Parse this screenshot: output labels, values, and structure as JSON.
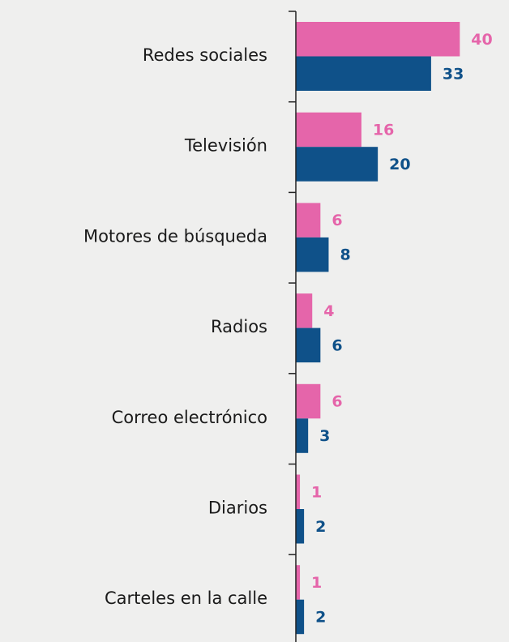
{
  "chart_data": {
    "type": "hbar",
    "categories": [
      "Redes sociales",
      "Televisión",
      "Motores de búsqueda",
      "Radios",
      "Correo electrónico",
      "Diarios",
      "Carteles en la calle"
    ],
    "series": [
      {
        "color": "#e565aa",
        "values": [
          40,
          16,
          6,
          4,
          6,
          1,
          1
        ]
      },
      {
        "color": "#0f5189",
        "values": [
          33,
          20,
          8,
          6,
          3,
          2,
          2
        ]
      }
    ],
    "xlim": [
      0,
      52
    ]
  }
}
